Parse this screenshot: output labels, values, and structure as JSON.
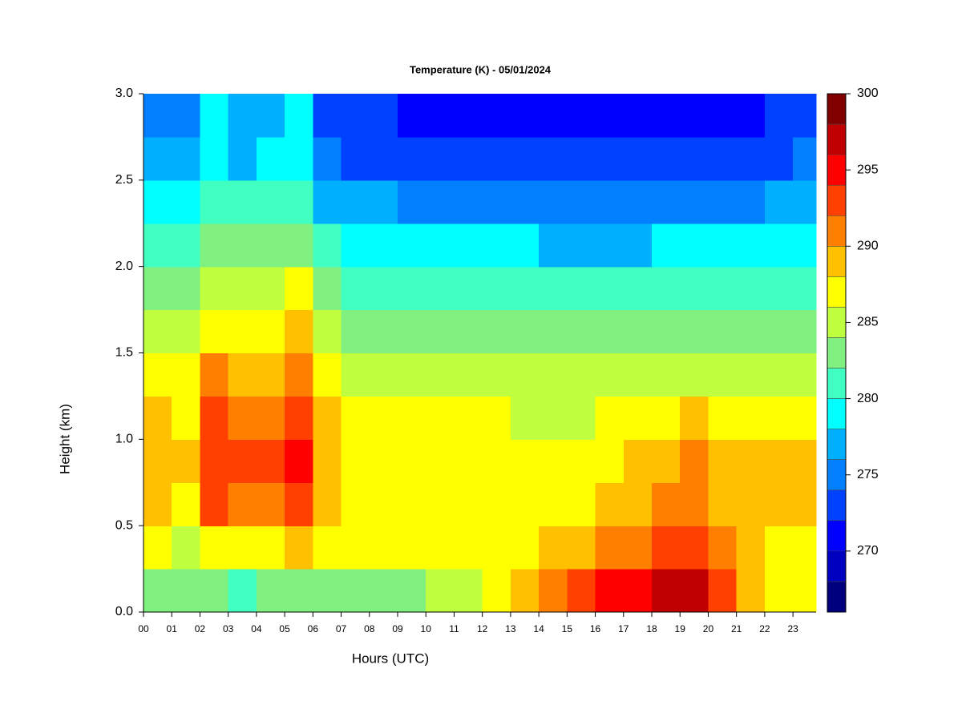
{
  "chart_data": {
    "type": "heatmap",
    "title": "Temperature (K) - 05/01/2024",
    "x_label": "Hours (UTC)",
    "y_label": "Height (km)",
    "x": [
      0.5,
      1.5,
      2.5,
      3.5,
      4.5,
      5.5,
      6.5,
      7.5,
      8.5,
      9.5,
      10.5,
      11.5,
      12.5,
      13.5,
      14.5,
      15.5,
      16.5,
      17.5,
      18.5,
      19.5,
      20.5,
      21.5,
      22.5,
      23.5
    ],
    "y": [
      0.125,
      0.375,
      0.625,
      0.875,
      1.125,
      1.375,
      1.625,
      1.875,
      2.125,
      2.375,
      2.625,
      2.875
    ],
    "z": [
      [
        282,
        282,
        282,
        281,
        282,
        282,
        282,
        282,
        282,
        283,
        285,
        285,
        286,
        288,
        290,
        292,
        294,
        295,
        297,
        296,
        292,
        289,
        287,
        286
      ],
      [
        286,
        285,
        287,
        287,
        287,
        288,
        286,
        286,
        286,
        286,
        286,
        287,
        287,
        287,
        288,
        289,
        290,
        291,
        292,
        292,
        290,
        288,
        287,
        287
      ],
      [
        289,
        287,
        292,
        291,
        291,
        293,
        289,
        287,
        287,
        287,
        287,
        287,
        287,
        287,
        287,
        287,
        288,
        289,
        290,
        291,
        289,
        289,
        289,
        289
      ],
      [
        289,
        288,
        293,
        292,
        292,
        294,
        289,
        287,
        287,
        287,
        287,
        287,
        287,
        286,
        286,
        286,
        287,
        288,
        289,
        290,
        289,
        288,
        288,
        288
      ],
      [
        289,
        287,
        292,
        291,
        291,
        293,
        288,
        286,
        286,
        286,
        286,
        286,
        286,
        285,
        285,
        285,
        286,
        286,
        287,
        288,
        287,
        286,
        286,
        286
      ],
      [
        287,
        286,
        290,
        288,
        289,
        291,
        286,
        285,
        285,
        285,
        285,
        284,
        284,
        284,
        284,
        284,
        284,
        284,
        285,
        285,
        285,
        285,
        285,
        285
      ],
      [
        285,
        284,
        287,
        286,
        286,
        288,
        284,
        283,
        283,
        283,
        283,
        282,
        282,
        282,
        282,
        282,
        282,
        282,
        283,
        283,
        283,
        283,
        283,
        283
      ],
      [
        283,
        283,
        285,
        284,
        284,
        286,
        282,
        281,
        281,
        281,
        281,
        280,
        280,
        280,
        280,
        280,
        280,
        280,
        280,
        281,
        281,
        281,
        281,
        281
      ],
      [
        281,
        281,
        283,
        282,
        282,
        283,
        280,
        279,
        279,
        278,
        278,
        278,
        278,
        278,
        277,
        277,
        277,
        277,
        278,
        278,
        278,
        278,
        279,
        279
      ],
      [
        279,
        279,
        281,
        280,
        280,
        281,
        277,
        276,
        276,
        275,
        275,
        275,
        275,
        275,
        274,
        274,
        274,
        274,
        275,
        275,
        275,
        275,
        276,
        276
      ],
      [
        276,
        276,
        279,
        277,
        278,
        279,
        274,
        273,
        273,
        273,
        273,
        272,
        272,
        272,
        272,
        272,
        272,
        272,
        272,
        272,
        272,
        273,
        273,
        274
      ],
      [
        275,
        275,
        278,
        276,
        277,
        278,
        273,
        272,
        272,
        271,
        271,
        271,
        271,
        270,
        270,
        270,
        270,
        270,
        270,
        270,
        271,
        271,
        272,
        273
      ]
    ],
    "xlim": [
      0,
      23.82
    ],
    "ylim": [
      0,
      3
    ],
    "xticks": [
      {
        "value": 0,
        "label": "00"
      },
      {
        "value": 1,
        "label": "01"
      },
      {
        "value": 2,
        "label": "02"
      },
      {
        "value": 3,
        "label": "03"
      },
      {
        "value": 4,
        "label": "04"
      },
      {
        "value": 5,
        "label": "05"
      },
      {
        "value": 6,
        "label": "06"
      },
      {
        "value": 7,
        "label": "07"
      },
      {
        "value": 8,
        "label": "08"
      },
      {
        "value": 9,
        "label": "09"
      },
      10,
      11,
      12,
      13,
      14,
      15,
      16,
      17,
      18,
      19,
      20,
      21,
      22,
      23
    ],
    "yticks": [
      {
        "value": 0,
        "label": "0.0"
      },
      0.5,
      {
        "value": 1,
        "label": "1.0"
      },
      1.5,
      {
        "value": 2,
        "label": "2.0"
      },
      2.5,
      {
        "value": 3,
        "label": "3.0"
      }
    ],
    "levels": [
      266,
      268,
      270,
      272,
      274,
      276,
      278,
      280,
      282,
      284,
      286,
      288,
      290,
      292,
      294,
      296,
      298,
      300
    ],
    "colors": [
      "#00007f",
      "#0000c0",
      "#0000ff",
      "#0040ff",
      "#0080ff",
      "#00b0ff",
      "#00ffff",
      "#40ffc0",
      "#80f080",
      "#c0ff40",
      "#ffff00",
      "#ffc000",
      "#ff8000",
      "#ff4000",
      "#ff0000",
      "#c00000",
      "#800000"
    ],
    "colorbar_ticks": [
      270,
      275,
      280,
      285,
      290,
      295,
      300
    ]
  }
}
